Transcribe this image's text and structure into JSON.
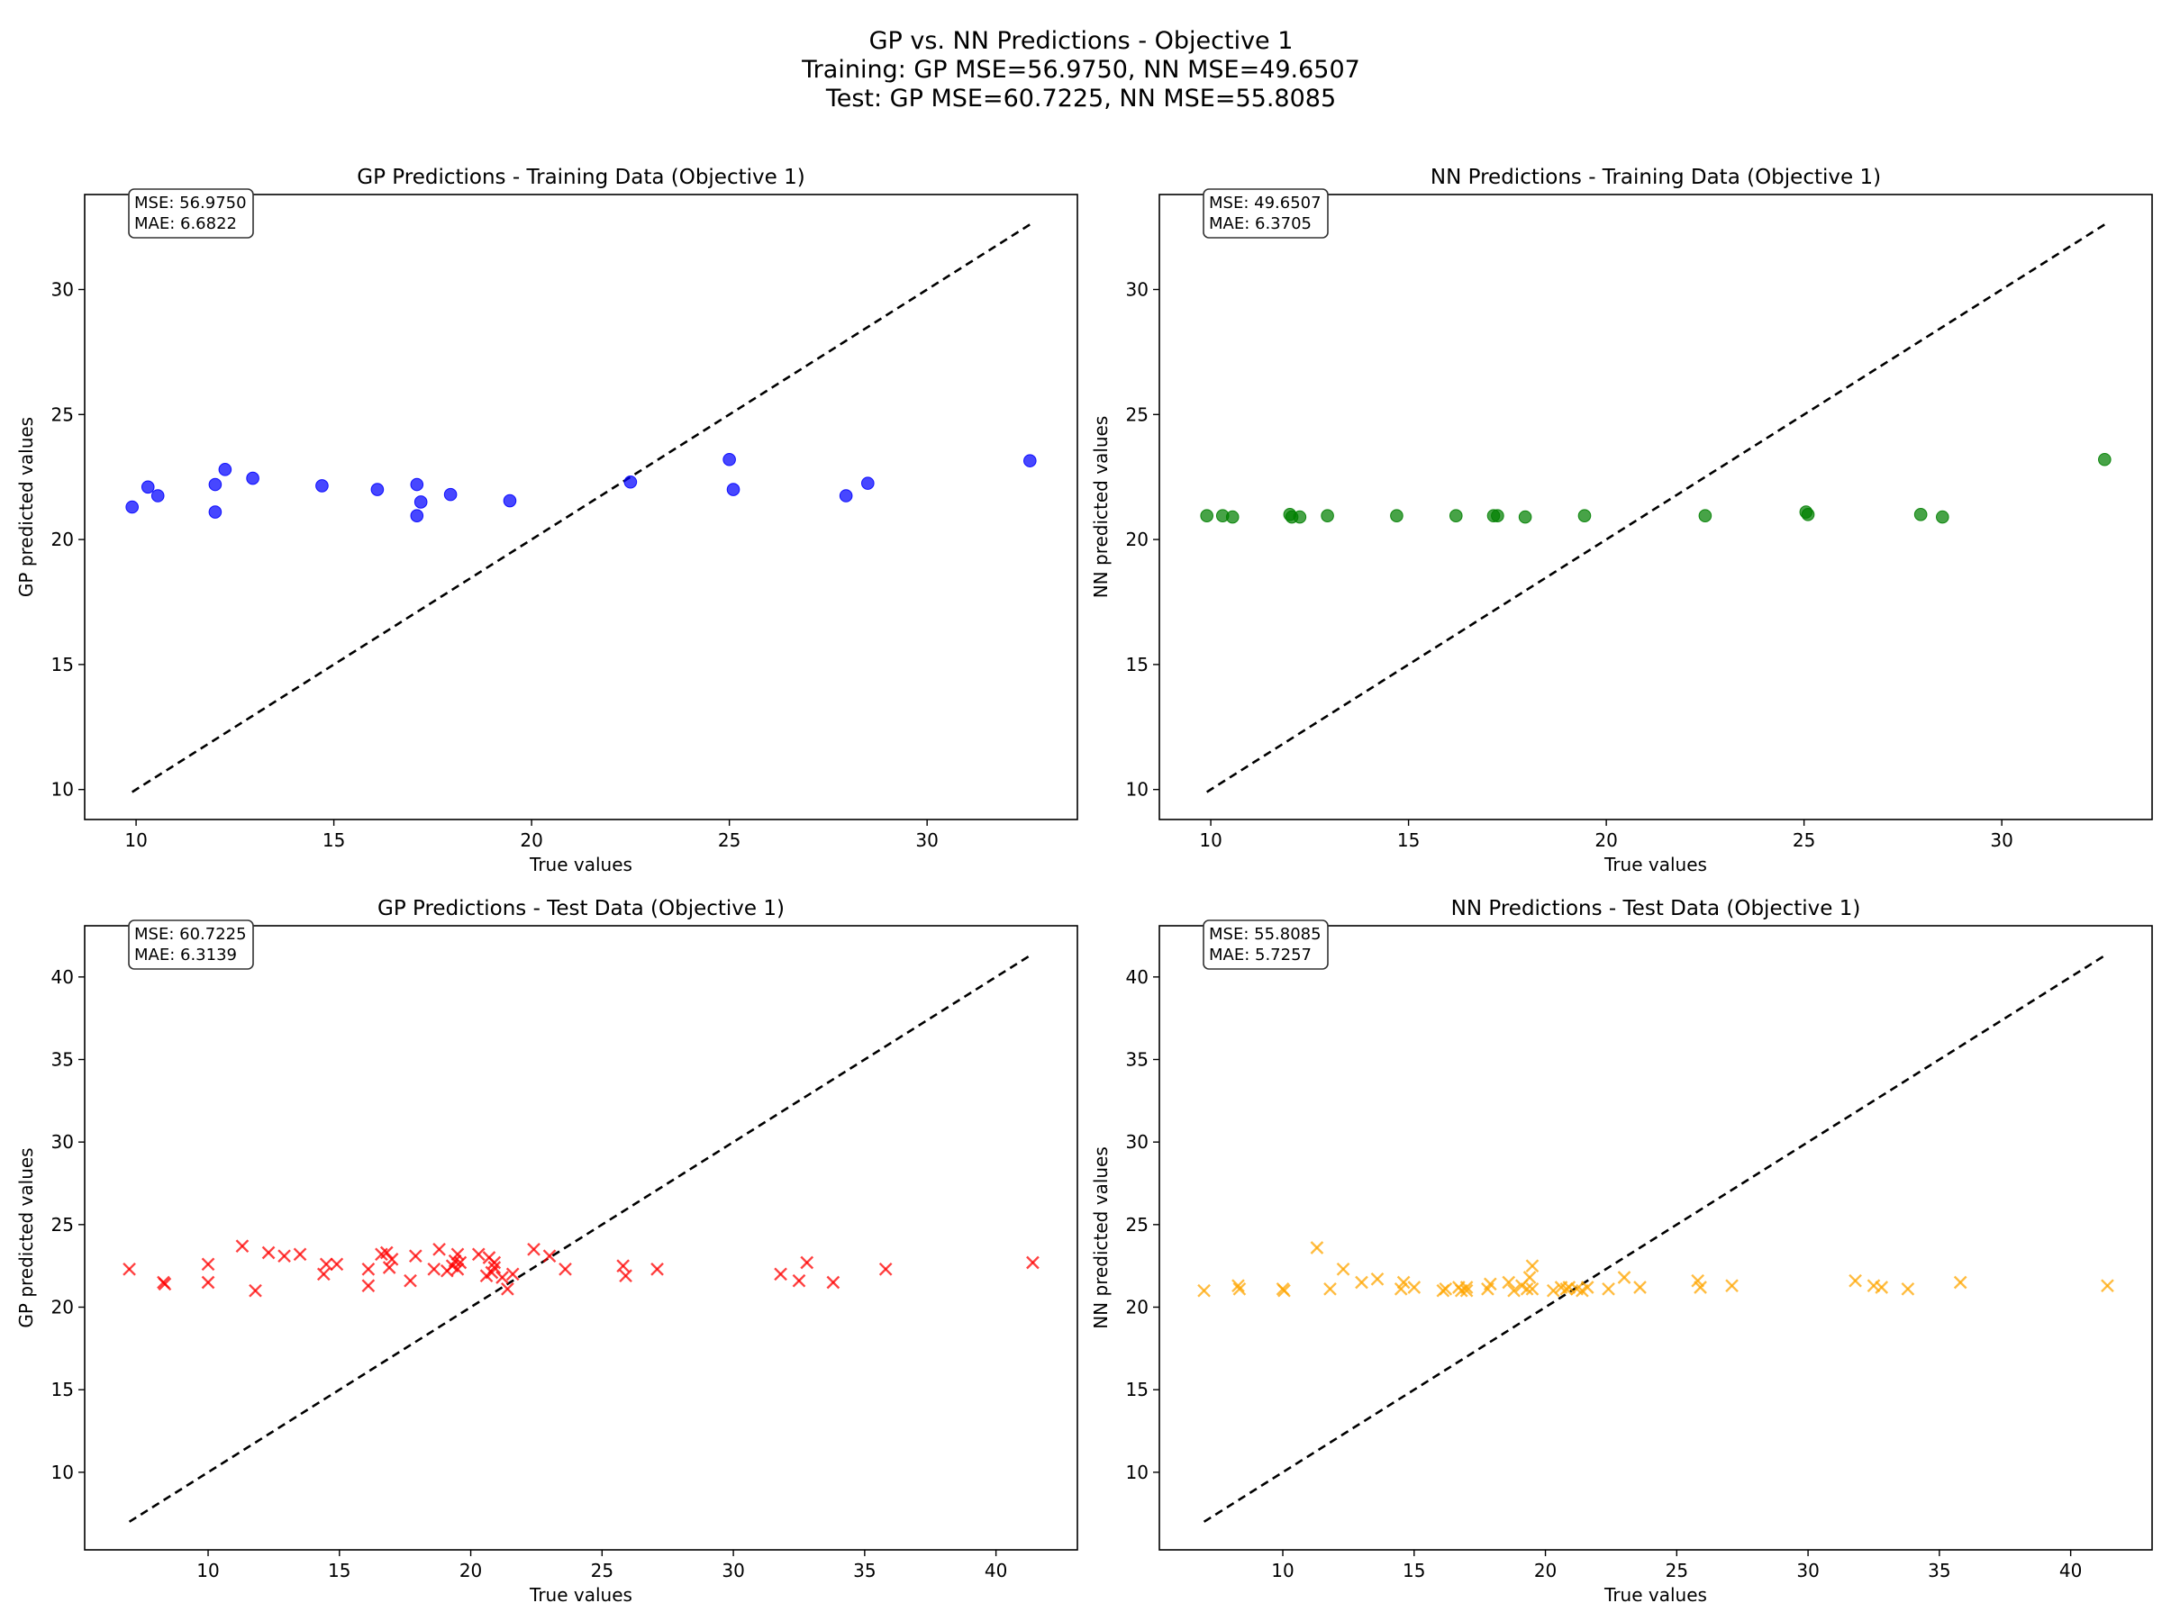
{
  "suptitle": {
    "line1": "GP vs. NN Predictions - Objective 1",
    "line2": "Training: GP MSE=56.9750, NN MSE=49.6507",
    "line3": "Test: GP MSE=60.7225, NN MSE=55.8085"
  },
  "chart_data": [
    {
      "type": "scatter",
      "title": "GP Predictions - Training Data (Objective 1)",
      "xlabel": "True values",
      "ylabel": "GP predicted values",
      "xlim": [
        8.7,
        33.8
      ],
      "ylim": [
        8.8,
        33.8
      ],
      "xticks": [
        10,
        15,
        20,
        25,
        30
      ],
      "yticks": [
        10,
        15,
        20,
        25,
        30
      ],
      "grid": false,
      "marker": "circle",
      "color": "#0000ff",
      "stats": {
        "mse": "MSE: 56.9750",
        "mae": "MAE: 6.6822"
      },
      "diagonal": [
        9.9,
        32.6
      ],
      "points": [
        [
          9.9,
          21.3
        ],
        [
          10.3,
          22.1
        ],
        [
          10.55,
          21.75
        ],
        [
          12.0,
          22.2
        ],
        [
          12.0,
          21.1
        ],
        [
          12.25,
          22.8
        ],
        [
          12.95,
          22.45
        ],
        [
          14.7,
          22.15
        ],
        [
          16.1,
          22.0
        ],
        [
          17.1,
          22.2
        ],
        [
          17.1,
          20.95
        ],
        [
          17.2,
          21.5
        ],
        [
          17.95,
          21.8
        ],
        [
          19.45,
          21.55
        ],
        [
          22.5,
          22.3
        ],
        [
          25.0,
          23.2
        ],
        [
          25.1,
          22.0
        ],
        [
          27.95,
          21.75
        ],
        [
          28.5,
          22.25
        ],
        [
          32.6,
          23.15
        ]
      ]
    },
    {
      "type": "scatter",
      "title": "NN Predictions - Training Data (Objective 1)",
      "xlabel": "True values",
      "ylabel": "NN predicted values",
      "xlim": [
        8.7,
        33.8
      ],
      "ylim": [
        8.8,
        33.8
      ],
      "xticks": [
        10,
        15,
        20,
        25,
        30
      ],
      "yticks": [
        10,
        15,
        20,
        25,
        30
      ],
      "grid": false,
      "marker": "circle",
      "color": "#008000",
      "stats": {
        "mse": "MSE: 49.6507",
        "mae": "MAE: 6.3705"
      },
      "diagonal": [
        9.9,
        32.6
      ],
      "points": [
        [
          9.9,
          20.95
        ],
        [
          10.3,
          20.95
        ],
        [
          10.55,
          20.9
        ],
        [
          12.0,
          21.0
        ],
        [
          12.05,
          20.9
        ],
        [
          12.25,
          20.9
        ],
        [
          12.95,
          20.95
        ],
        [
          14.7,
          20.95
        ],
        [
          16.2,
          20.95
        ],
        [
          17.15,
          20.95
        ],
        [
          17.25,
          20.95
        ],
        [
          17.95,
          20.9
        ],
        [
          19.45,
          20.95
        ],
        [
          22.5,
          20.95
        ],
        [
          25.05,
          21.1
        ],
        [
          25.1,
          21.0
        ],
        [
          27.95,
          21.0
        ],
        [
          28.5,
          20.9
        ],
        [
          32.6,
          23.2
        ]
      ]
    },
    {
      "type": "scatter",
      "title": "GP Predictions - Test Data (Objective 1)",
      "xlabel": "True values",
      "ylabel": "GP predicted values",
      "xlim": [
        5.3,
        43.1
      ],
      "ylim": [
        5.3,
        43.1
      ],
      "xticks": [
        10,
        15,
        20,
        25,
        30,
        35,
        40
      ],
      "yticks": [
        10,
        15,
        20,
        25,
        30,
        35,
        40
      ],
      "grid": false,
      "marker": "x",
      "color": "#ff0000",
      "stats": {
        "mse": "MSE: 60.7225",
        "mae": "MAE: 6.3139"
      },
      "diagonal": [
        7.0,
        41.4
      ],
      "points": [
        [
          7.0,
          22.3
        ],
        [
          8.3,
          21.5
        ],
        [
          8.35,
          21.4
        ],
        [
          10.0,
          22.6
        ],
        [
          10.0,
          21.5
        ],
        [
          11.3,
          23.7
        ],
        [
          11.8,
          21.0
        ],
        [
          12.3,
          23.3
        ],
        [
          12.9,
          23.1
        ],
        [
          13.5,
          23.2
        ],
        [
          14.4,
          22.0
        ],
        [
          14.5,
          22.6
        ],
        [
          14.9,
          22.6
        ],
        [
          16.1,
          21.3
        ],
        [
          16.1,
          22.3
        ],
        [
          16.6,
          23.2
        ],
        [
          16.8,
          23.3
        ],
        [
          16.9,
          22.4
        ],
        [
          17.0,
          22.9
        ],
        [
          17.7,
          21.6
        ],
        [
          17.9,
          23.1
        ],
        [
          18.6,
          22.3
        ],
        [
          18.8,
          23.5
        ],
        [
          19.1,
          22.2
        ],
        [
          19.3,
          22.5
        ],
        [
          19.4,
          22.8
        ],
        [
          19.5,
          23.2
        ],
        [
          19.5,
          22.3
        ],
        [
          19.6,
          22.7
        ],
        [
          20.3,
          23.2
        ],
        [
          20.6,
          21.9
        ],
        [
          20.7,
          23.0
        ],
        [
          20.8,
          22.1
        ],
        [
          20.9,
          22.4
        ],
        [
          20.9,
          22.7
        ],
        [
          21.2,
          21.8
        ],
        [
          21.4,
          21.1
        ],
        [
          21.6,
          22.0
        ],
        [
          22.4,
          23.5
        ],
        [
          23.0,
          23.1
        ],
        [
          23.6,
          22.3
        ],
        [
          25.8,
          22.5
        ],
        [
          25.9,
          21.9
        ],
        [
          27.1,
          22.3
        ],
        [
          31.8,
          22.0
        ],
        [
          32.5,
          21.6
        ],
        [
          32.8,
          22.7
        ],
        [
          33.8,
          21.5
        ],
        [
          35.8,
          22.3
        ],
        [
          41.4,
          22.7
        ]
      ]
    },
    {
      "type": "scatter",
      "title": "NN Predictions - Test Data (Objective 1)",
      "xlabel": "True values",
      "ylabel": "NN predicted values",
      "xlim": [
        5.3,
        43.1
      ],
      "ylim": [
        5.3,
        43.1
      ],
      "xticks": [
        10,
        15,
        20,
        25,
        30,
        35,
        40
      ],
      "yticks": [
        10,
        15,
        20,
        25,
        30,
        35,
        40
      ],
      "grid": false,
      "marker": "x",
      "color": "#ffa500",
      "stats": {
        "mse": "MSE: 55.8085",
        "mae": "MAE: 5.7257"
      },
      "diagonal": [
        7.0,
        41.4
      ],
      "points": [
        [
          7.0,
          21.0
        ],
        [
          8.3,
          21.3
        ],
        [
          8.35,
          21.1
        ],
        [
          10.0,
          21.1
        ],
        [
          10.05,
          21.0
        ],
        [
          11.3,
          23.6
        ],
        [
          11.8,
          21.1
        ],
        [
          12.3,
          22.3
        ],
        [
          13.0,
          21.5
        ],
        [
          13.6,
          21.7
        ],
        [
          14.5,
          21.1
        ],
        [
          14.6,
          21.5
        ],
        [
          15.0,
          21.2
        ],
        [
          16.1,
          21.0
        ],
        [
          16.2,
          21.1
        ],
        [
          16.7,
          21.2
        ],
        [
          16.8,
          21.0
        ],
        [
          17.0,
          21.2
        ],
        [
          17.0,
          21.0
        ],
        [
          17.8,
          21.1
        ],
        [
          17.9,
          21.4
        ],
        [
          18.6,
          21.5
        ],
        [
          18.8,
          21.0
        ],
        [
          19.1,
          21.3
        ],
        [
          19.3,
          21.1
        ],
        [
          19.4,
          21.8
        ],
        [
          19.5,
          22.5
        ],
        [
          19.5,
          21.1
        ],
        [
          20.3,
          21.0
        ],
        [
          20.6,
          21.2
        ],
        [
          20.8,
          21.1
        ],
        [
          20.9,
          21.2
        ],
        [
          21.2,
          21.1
        ],
        [
          21.4,
          21.0
        ],
        [
          21.6,
          21.2
        ],
        [
          22.4,
          21.1
        ],
        [
          23.0,
          21.8
        ],
        [
          23.6,
          21.2
        ],
        [
          25.8,
          21.6
        ],
        [
          25.9,
          21.2
        ],
        [
          27.1,
          21.3
        ],
        [
          31.8,
          21.6
        ],
        [
          32.5,
          21.3
        ],
        [
          32.8,
          21.2
        ],
        [
          33.8,
          21.1
        ],
        [
          35.8,
          21.5
        ],
        [
          41.4,
          21.3
        ]
      ]
    }
  ]
}
